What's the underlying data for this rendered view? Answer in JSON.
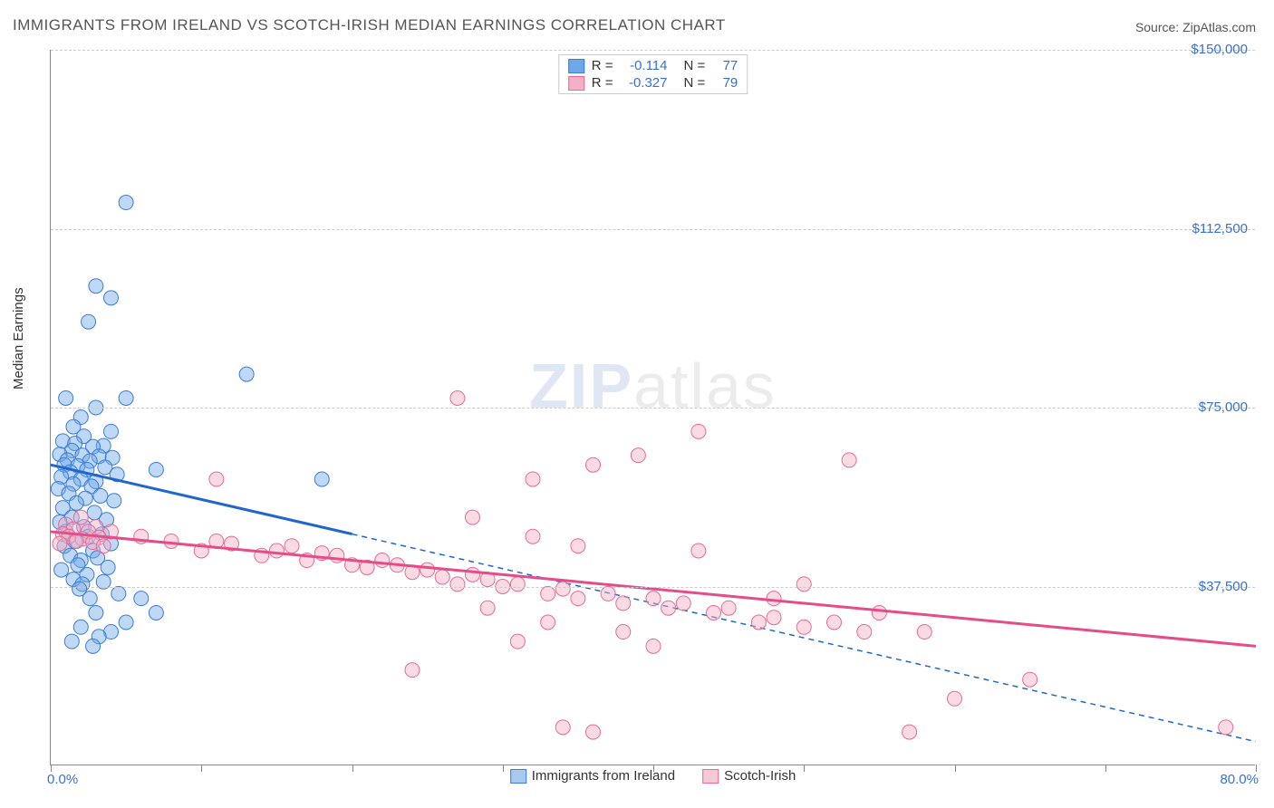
{
  "title": "IMMIGRANTS FROM IRELAND VS SCOTCH-IRISH MEDIAN EARNINGS CORRELATION CHART",
  "source": "Source: ZipAtlas.com",
  "ylabel": "Median Earnings",
  "watermark_a": "ZIP",
  "watermark_b": "atlas",
  "chart": {
    "type": "scatter",
    "background_color": "#ffffff",
    "grid_color": "#cccccc",
    "axis_color": "#888888",
    "xlim": [
      0,
      80
    ],
    "ylim": [
      0,
      150000
    ],
    "xticks": [
      0,
      10,
      20,
      30,
      40,
      50,
      60,
      70,
      80
    ],
    "yticks": [
      37500,
      75000,
      112500,
      150000
    ],
    "ytick_labels": [
      "$37,500",
      "$75,000",
      "$112,500",
      "$150,000"
    ],
    "xlabel_min": "0.0%",
    "xlabel_max": "80.0%",
    "tick_label_color": "#3670d6",
    "marker_radius": 8,
    "marker_opacity": 0.45,
    "line_width": 3
  },
  "series": [
    {
      "name": "Immigrants from Ireland",
      "color": "#6ea8e8",
      "border": "#3b7dd8",
      "line_color": "#1f66d0",
      "r": -0.114,
      "n": 77,
      "trend": {
        "x1": 0,
        "y1": 63000,
        "x2": 80,
        "y2": 5000,
        "solid_until_x": 20
      },
      "points": [
        [
          5,
          118000
        ],
        [
          3,
          100500
        ],
        [
          4,
          98000
        ],
        [
          2.5,
          93000
        ],
        [
          13,
          82000
        ],
        [
          1,
          77000
        ],
        [
          5,
          77000
        ],
        [
          3,
          75000
        ],
        [
          2,
          73000
        ],
        [
          1.5,
          71000
        ],
        [
          4,
          70000
        ],
        [
          2.2,
          69000
        ],
        [
          0.8,
          68000
        ],
        [
          1.6,
          67500
        ],
        [
          3.5,
          67000
        ],
        [
          2.8,
          66800
        ],
        [
          1.4,
          66000
        ],
        [
          0.6,
          65200
        ],
        [
          2.1,
          65000
        ],
        [
          3.2,
          64800
        ],
        [
          4.1,
          64500
        ],
        [
          1.1,
          64000
        ],
        [
          2.6,
          63800
        ],
        [
          0.9,
          63000
        ],
        [
          1.8,
          62800
        ],
        [
          3.6,
          62500
        ],
        [
          2.4,
          62000
        ],
        [
          1.3,
          61500
        ],
        [
          4.4,
          61000
        ],
        [
          0.7,
          60500
        ],
        [
          2.0,
          60000
        ],
        [
          3.0,
          59500
        ],
        [
          1.5,
          59000
        ],
        [
          2.7,
          58500
        ],
        [
          0.5,
          58000
        ],
        [
          7,
          62000
        ],
        [
          1.2,
          57000
        ],
        [
          3.3,
          56500
        ],
        [
          2.3,
          56000
        ],
        [
          1.7,
          55000
        ],
        [
          4.2,
          55500
        ],
        [
          0.8,
          54000
        ],
        [
          2.9,
          53000
        ],
        [
          1.4,
          52000
        ],
        [
          3.7,
          51500
        ],
        [
          0.6,
          51000
        ],
        [
          2.2,
          50000
        ],
        [
          18,
          60000
        ],
        [
          1.0,
          49000
        ],
        [
          3.4,
          48500
        ],
        [
          2.5,
          48000
        ],
        [
          1.6,
          47000
        ],
        [
          4.0,
          46500
        ],
        [
          0.9,
          46000
        ],
        [
          2.8,
          45000
        ],
        [
          1.3,
          44000
        ],
        [
          3.1,
          43500
        ],
        [
          2.0,
          43000
        ],
        [
          1.8,
          42000
        ],
        [
          3.8,
          41500
        ],
        [
          0.7,
          41000
        ],
        [
          2.4,
          40000
        ],
        [
          1.5,
          39000
        ],
        [
          3.5,
          38500
        ],
        [
          2.1,
          38000
        ],
        [
          1.9,
          37000
        ],
        [
          4.5,
          36000
        ],
        [
          2.6,
          35000
        ],
        [
          6,
          35000
        ],
        [
          3,
          32000
        ],
        [
          5,
          30000
        ],
        [
          7,
          32000
        ],
        [
          2,
          29000
        ],
        [
          4,
          28000
        ],
        [
          3.2,
          27000
        ],
        [
          1.4,
          26000
        ],
        [
          2.8,
          25000
        ]
      ]
    },
    {
      "name": "Scotch-Irish",
      "color": "#f4b0c4",
      "border": "#e76a94",
      "line_color": "#e64c88",
      "r": -0.327,
      "n": 79,
      "trend": {
        "x1": 0,
        "y1": 49000,
        "x2": 80,
        "y2": 25000,
        "solid_until_x": 80
      },
      "points": [
        [
          27,
          77000
        ],
        [
          39,
          65000
        ],
        [
          53,
          64000
        ],
        [
          36,
          63000
        ],
        [
          32,
          60000
        ],
        [
          43,
          70000
        ],
        [
          11,
          60000
        ],
        [
          2,
          52000
        ],
        [
          1,
          50500
        ],
        [
          3,
          50000
        ],
        [
          1.5,
          49500
        ],
        [
          2.5,
          49000
        ],
        [
          0.8,
          48500
        ],
        [
          4,
          49000
        ],
        [
          1.2,
          48000
        ],
        [
          3.2,
          47800
        ],
        [
          2.1,
          47500
        ],
        [
          1.7,
          47000
        ],
        [
          2.8,
          46800
        ],
        [
          0.6,
          46500
        ],
        [
          3.5,
          46000
        ],
        [
          6,
          48000
        ],
        [
          8,
          47000
        ],
        [
          10,
          45000
        ],
        [
          12,
          46500
        ],
        [
          14,
          44000
        ],
        [
          11,
          47000
        ],
        [
          15,
          45000
        ],
        [
          16,
          46000
        ],
        [
          18,
          44500
        ],
        [
          17,
          43000
        ],
        [
          19,
          44000
        ],
        [
          20,
          42000
        ],
        [
          22,
          43000
        ],
        [
          21,
          41500
        ],
        [
          23,
          42000
        ],
        [
          24,
          40500
        ],
        [
          25,
          41000
        ],
        [
          26,
          39500
        ],
        [
          28,
          40000
        ],
        [
          27,
          38000
        ],
        [
          29,
          39000
        ],
        [
          30,
          37500
        ],
        [
          31,
          38000
        ],
        [
          33,
          36000
        ],
        [
          34,
          37000
        ],
        [
          35,
          35000
        ],
        [
          37,
          36000
        ],
        [
          38,
          34000
        ],
        [
          40,
          35000
        ],
        [
          41,
          33000
        ],
        [
          42,
          34000
        ],
        [
          44,
          32000
        ],
        [
          45,
          33000
        ],
        [
          47,
          30000
        ],
        [
          48,
          31000
        ],
        [
          50,
          29000
        ],
        [
          52,
          30000
        ],
        [
          54,
          28000
        ],
        [
          28,
          52000
        ],
        [
          32,
          48000
        ],
        [
          35,
          46000
        ],
        [
          43,
          45000
        ],
        [
          33,
          30000
        ],
        [
          38,
          28000
        ],
        [
          40,
          25000
        ],
        [
          24,
          20000
        ],
        [
          29,
          33000
        ],
        [
          31,
          26000
        ],
        [
          36,
          7000
        ],
        [
          57,
          7000
        ],
        [
          60,
          14000
        ],
        [
          65,
          18000
        ],
        [
          48,
          35000
        ],
        [
          50,
          38000
        ],
        [
          55,
          32000
        ],
        [
          58,
          28000
        ],
        [
          78,
          8000
        ],
        [
          34,
          8000
        ]
      ]
    }
  ],
  "legend": {
    "items": [
      {
        "label": "Immigrants from Ireland",
        "fill": "#a8c9f0",
        "border": "#3b7dd8"
      },
      {
        "label": "Scotch-Irish",
        "fill": "#f7c8d6",
        "border": "#e76a94"
      }
    ]
  }
}
